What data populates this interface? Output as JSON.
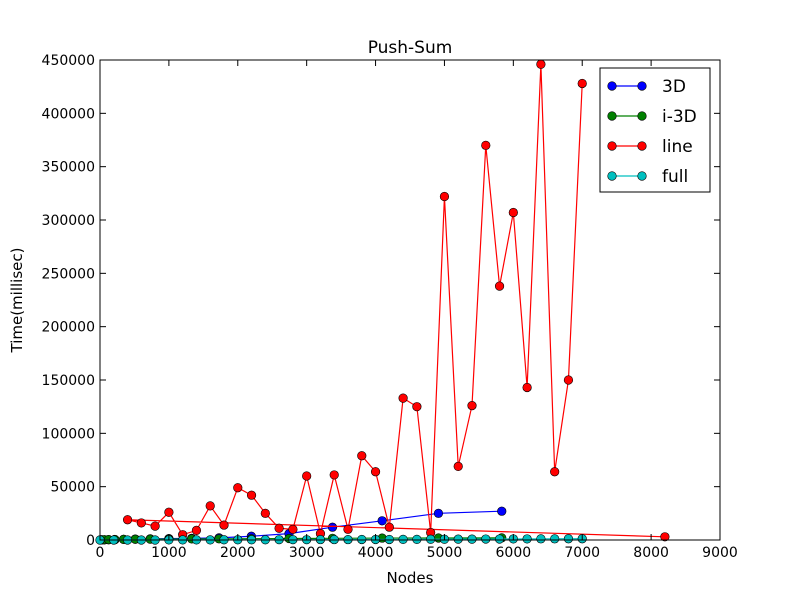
{
  "chart_data": {
    "type": "line",
    "title": "Push-Sum",
    "xlabel": "Nodes",
    "ylabel": "Time(millisec)",
    "xlim": [
      0,
      9000
    ],
    "ylim": [
      0,
      450000
    ],
    "xticks": [
      0,
      1000,
      2000,
      3000,
      4000,
      5000,
      6000,
      7000,
      8000,
      9000
    ],
    "yticks": [
      0,
      50000,
      100000,
      150000,
      200000,
      250000,
      300000,
      350000,
      400000,
      450000
    ],
    "grid": false,
    "legend_position": "top-right",
    "series": [
      {
        "name": "3D",
        "color": "#0000ff",
        "x": [
          8,
          27,
          64,
          125,
          216,
          343,
          512,
          729,
          1000,
          1331,
          1728,
          2197,
          2744,
          3375,
          4096,
          4913,
          5832
        ],
        "y": [
          50,
          80,
          150,
          250,
          400,
          600,
          900,
          1100,
          1300,
          1500,
          2000,
          3500,
          6000,
          12000,
          18000,
          25000,
          27000
        ]
      },
      {
        "name": "i-3D",
        "color": "#008000",
        "x": [
          8,
          27,
          64,
          125,
          216,
          343,
          512,
          729,
          1000,
          1331,
          1728,
          2197,
          2744,
          3375,
          4096,
          4913,
          5832
        ],
        "y": [
          100,
          200,
          300,
          400,
          500,
          600,
          700,
          800,
          900,
          1000,
          1100,
          1200,
          1400,
          1600,
          1800,
          1900,
          2000
        ]
      },
      {
        "name": "line",
        "color": "#ff0000",
        "x": [
          8200,
          400,
          600,
          800,
          1000,
          1200,
          1400,
          1600,
          1800,
          2000,
          2200,
          2400,
          2600,
          2800,
          3000,
          3200,
          3400,
          3600,
          3800,
          4000,
          4200,
          4400,
          4600,
          4800,
          5000,
          5200,
          5400,
          5600,
          5800,
          6000,
          6200,
          6400,
          6600,
          6800,
          7000
        ],
        "y": [
          3000,
          19000,
          16000,
          13000,
          26000,
          5000,
          9000,
          32000,
          14000,
          49000,
          42000,
          25000,
          11000,
          10000,
          60000,
          6000,
          61000,
          10000,
          79000,
          64000,
          12000,
          133000,
          125000,
          7000,
          322000,
          69000,
          126000,
          370000,
          238000,
          307000,
          143000,
          446000,
          64000,
          150000,
          428000
        ]
      },
      {
        "name": "full",
        "color": "#00bfbf",
        "x": [
          0,
          200,
          400,
          600,
          800,
          1000,
          1200,
          1400,
          1600,
          1800,
          2000,
          2200,
          2400,
          2600,
          2800,
          3000,
          3200,
          3400,
          3600,
          3800,
          4000,
          4200,
          4400,
          4600,
          4800,
          5000,
          5200,
          5400,
          5600,
          5800,
          6000,
          6200,
          6400,
          6600,
          6800,
          7000
        ],
        "y": [
          0,
          0,
          0,
          0,
          0,
          100,
          100,
          100,
          100,
          200,
          200,
          200,
          200,
          300,
          300,
          300,
          400,
          400,
          400,
          500,
          500,
          500,
          600,
          600,
          700,
          700,
          800,
          800,
          900,
          900,
          1000,
          1000,
          1100,
          1100,
          1200,
          1200
        ]
      }
    ]
  }
}
